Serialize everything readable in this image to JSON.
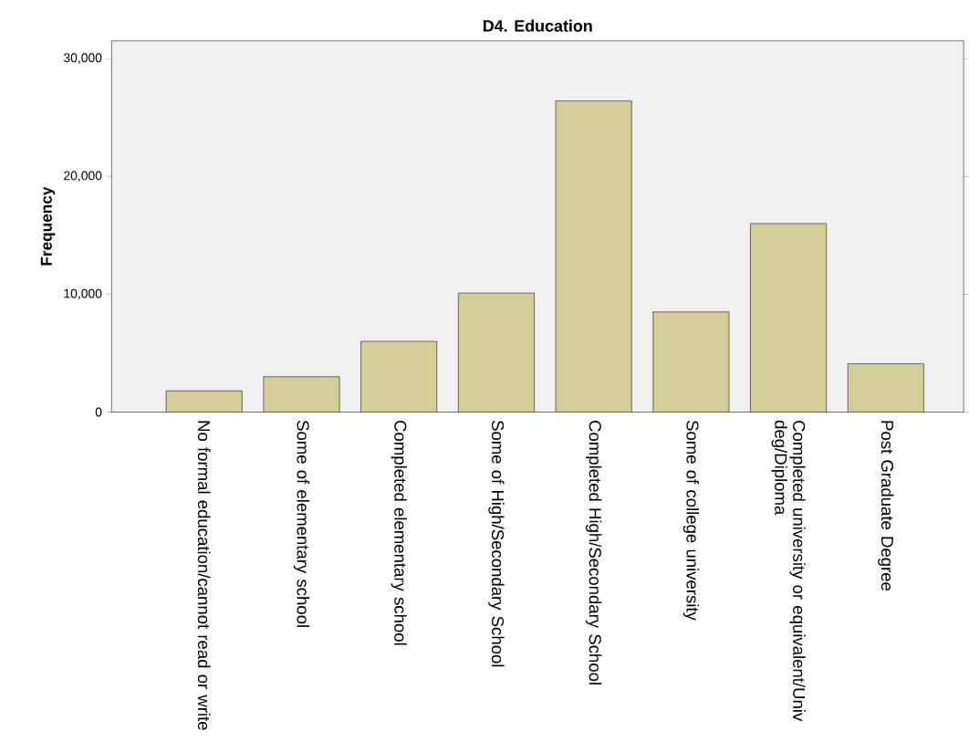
{
  "chart_data": {
    "type": "bar",
    "title": "D4. Education",
    "ylabel": "Frequency",
    "categories": [
      "No formal education/cannot read or write",
      "Some of elementary school",
      "Completed elementary school",
      "Some of High/Secondary School",
      "Completed High/Secondary School",
      "Some of college university",
      "Completed university or equivalent/Univ deg/Diploma",
      "Post Graduate Degree"
    ],
    "values": [
      1800,
      3000,
      6000,
      10100,
      26400,
      8500,
      16000,
      4100
    ],
    "color": "#d3ce97",
    "ylim": [
      0,
      31500
    ],
    "yticks": [
      {
        "value": 0,
        "label": "0"
      },
      {
        "value": 10000,
        "label": "10,000"
      },
      {
        "value": 20000,
        "label": "20,000"
      },
      {
        "value": 30000,
        "label": "30,000"
      }
    ],
    "grid": false
  }
}
